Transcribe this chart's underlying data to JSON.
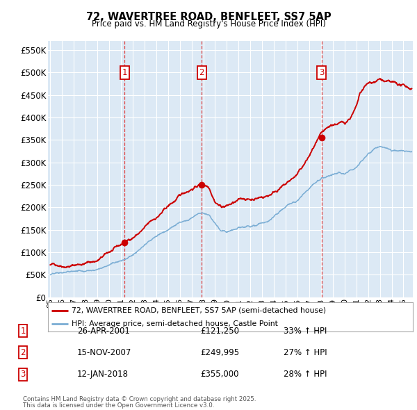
{
  "title1": "72, WAVERTREE ROAD, BENFLEET, SS7 5AP",
  "title2": "Price paid vs. HM Land Registry's House Price Index (HPI)",
  "background_color": "#dce9f5",
  "grid_color": "#ffffff",
  "red_line_color": "#cc0000",
  "blue_line_color": "#7aadd4",
  "dashed_line_color": "#dd4444",
  "ylim": [
    0,
    570000
  ],
  "yticks": [
    0,
    50000,
    100000,
    150000,
    200000,
    250000,
    300000,
    350000,
    400000,
    450000,
    500000,
    550000
  ],
  "ytick_labels": [
    "£0",
    "£50K",
    "£100K",
    "£150K",
    "£200K",
    "£250K",
    "£300K",
    "£350K",
    "£400K",
    "£450K",
    "£500K",
    "£550K"
  ],
  "sales": [
    {
      "num": 1,
      "date": "26-APR-2001",
      "price": 121250,
      "pct": "33%",
      "x_year": 2001.32
    },
    {
      "num": 2,
      "date": "15-NOV-2007",
      "price": 249995,
      "pct": "27%",
      "x_year": 2007.87
    },
    {
      "num": 3,
      "date": "12-JAN-2018",
      "price": 355000,
      "pct": "28%",
      "x_year": 2018.04
    }
  ],
  "legend_line1": "72, WAVERTREE ROAD, BENFLEET, SS7 5AP (semi-detached house)",
  "legend_line2": "HPI: Average price, semi-detached house, Castle Point",
  "footer1": "Contains HM Land Registry data © Crown copyright and database right 2025.",
  "footer2": "This data is licensed under the Open Government Licence v3.0.",
  "xmin": 1994.8,
  "xmax": 2025.8
}
